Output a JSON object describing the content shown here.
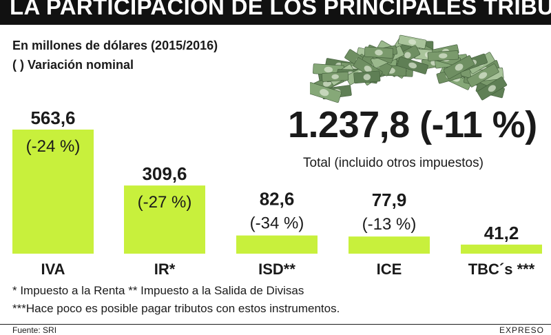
{
  "header": {
    "title": "LA PARTICIPACIÓN DE LOS PRINCIPALES TRIBUTOS"
  },
  "subtitles": {
    "units": "En millones de dólares (2015/2016)",
    "legend_note": "( ) Variación nominal"
  },
  "total": {
    "value": "1.237,8 (-11 %)",
    "caption": "Total (incluido otros impuestos)"
  },
  "chart_data": {
    "type": "bar",
    "categories": [
      "IVA",
      "IR*",
      "ISD**",
      "ICE",
      "TBC´s ***"
    ],
    "values": [
      563.6,
      309.6,
      82.6,
      77.9,
      41.2
    ],
    "value_labels": [
      "563,6",
      "309,6",
      "82,6",
      "77,9",
      "41,2"
    ],
    "variation_labels": [
      "(-24 %)",
      "(-27 %)",
      "(-34 %)",
      "(-13 %)",
      ""
    ],
    "bar_color": "#c8f03c",
    "ylim": [
      0,
      563.6
    ],
    "grid": false
  },
  "footnotes": [
    "* Impuesto a la Renta  ** Impuesto a la Salida de Divisas",
    "***Hace poco es posible pagar tributos con estos instrumentos."
  ],
  "footer": {
    "source": "Fuente: SRI",
    "brand": "EXPRESO"
  },
  "image": {
    "icon": "money-pile-icon"
  }
}
